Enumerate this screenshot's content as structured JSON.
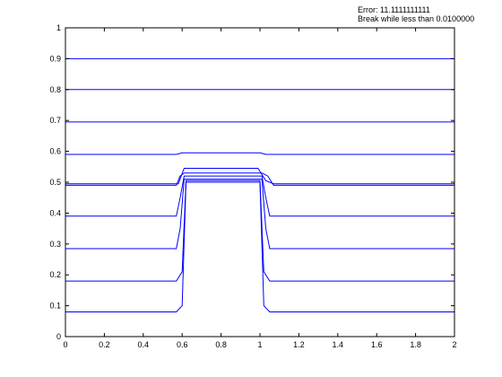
{
  "status": {
    "error_text": "Error: 11.1111111111",
    "break_text": "Break while less than 0.0100000"
  },
  "chart_data": {
    "type": "line",
    "title": "",
    "xlabel": "",
    "ylabel": "",
    "xlim": [
      0,
      2
    ],
    "ylim": [
      0,
      1
    ],
    "grid": false,
    "legend": "none",
    "line_color": "#0000ff",
    "x_ticks": [
      "0",
      "0.2",
      "0.4",
      "0.6",
      "0.8",
      "1",
      "1.2",
      "1.4",
      "1.6",
      "1.8",
      "2"
    ],
    "y_ticks": [
      "0",
      "0.1",
      "0.2",
      "0.3",
      "0.4",
      "0.5",
      "0.6",
      "0.7",
      "0.8",
      "0.9",
      "1"
    ],
    "series": [
      {
        "x": [
          0,
          0.57,
          0.6,
          0.62,
          1.0,
          1.02,
          1.05,
          2
        ],
        "y": [
          0.08,
          0.08,
          0.1,
          0.5,
          0.5,
          0.1,
          0.08,
          0.08
        ]
      },
      {
        "x": [
          0,
          0.57,
          0.6,
          0.62,
          1.0,
          1.02,
          1.05,
          2
        ],
        "y": [
          0.18,
          0.18,
          0.21,
          0.505,
          0.505,
          0.21,
          0.18,
          0.18
        ]
      },
      {
        "x": [
          0,
          0.57,
          0.59,
          0.61,
          1.01,
          1.03,
          1.05,
          2
        ],
        "y": [
          0.285,
          0.285,
          0.35,
          0.51,
          0.51,
          0.35,
          0.285,
          0.285
        ]
      },
      {
        "x": [
          0,
          0.57,
          0.59,
          0.61,
          1.01,
          1.03,
          1.05,
          2
        ],
        "y": [
          0.39,
          0.39,
          0.45,
          0.52,
          0.52,
          0.45,
          0.39,
          0.39
        ]
      },
      {
        "x": [
          0,
          0.57,
          0.59,
          0.61,
          1.01,
          1.04,
          1.07,
          2
        ],
        "y": [
          0.49,
          0.49,
          0.52,
          0.53,
          0.53,
          0.52,
          0.49,
          0.49
        ]
      },
      {
        "x": [
          0,
          0.58,
          0.61,
          0.99,
          1.03,
          1.07,
          2
        ],
        "y": [
          0.495,
          0.495,
          0.545,
          0.545,
          0.505,
          0.495,
          0.495
        ]
      },
      {
        "x": [
          0,
          0.57,
          0.6,
          1.0,
          1.03,
          2
        ],
        "y": [
          0.59,
          0.59,
          0.595,
          0.595,
          0.59,
          0.59
        ]
      },
      {
        "x": [
          0,
          2
        ],
        "y": [
          0.695,
          0.695
        ]
      },
      {
        "x": [
          0,
          2
        ],
        "y": [
          0.8,
          0.8
        ]
      },
      {
        "x": [
          0,
          2
        ],
        "y": [
          0.9,
          0.9
        ]
      }
    ]
  }
}
